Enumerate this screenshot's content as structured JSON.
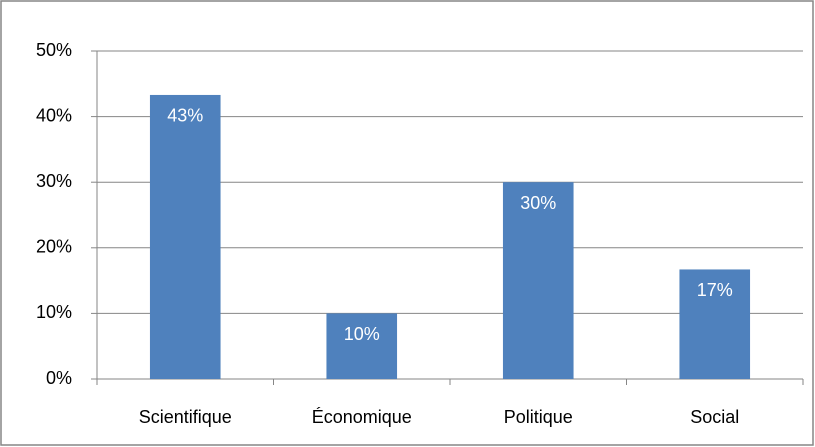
{
  "chart_data": {
    "type": "bar",
    "categories": [
      "Scientifique",
      "Économique",
      "Politique",
      "Social"
    ],
    "values": [
      43.3,
      10,
      30,
      16.7
    ],
    "value_labels": [
      "43%",
      "10%",
      "30%",
      "17%"
    ],
    "color": "#4f81bd",
    "ylim": [
      0,
      50
    ],
    "yticks": [
      {
        "value": 0,
        "label": "0%"
      },
      {
        "value": 10,
        "label": "10%"
      },
      {
        "value": 20,
        "label": "20%"
      },
      {
        "value": 30,
        "label": "30%"
      },
      {
        "value": 40,
        "label": "40%"
      },
      {
        "value": 50,
        "label": "50%"
      }
    ],
    "grid": true
  }
}
